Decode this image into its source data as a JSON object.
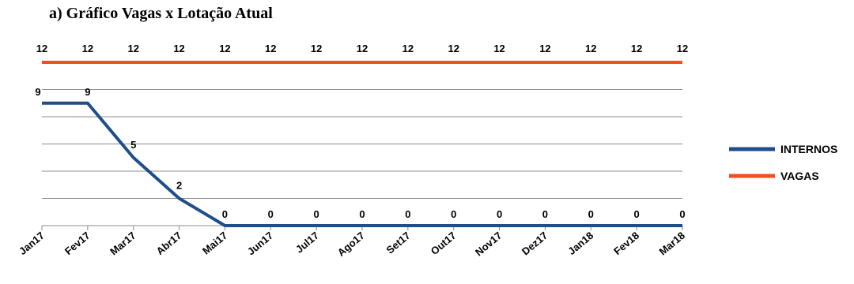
{
  "chart_data": {
    "type": "line",
    "title": "a) Gráfico Vagas x Lotação Atual",
    "categories": [
      "Jan17",
      "Fev17",
      "Mar17",
      "Abr17",
      "Mai17",
      "Jun17",
      "Jul17",
      "Ago17",
      "Set17",
      "Out17",
      "Nov17",
      "Dez17",
      "Jan18",
      "Fev18",
      "Mar18"
    ],
    "series": [
      {
        "name": "INTERNOS",
        "color": "#1f4e8c",
        "values": [
          9,
          9,
          5,
          2,
          0,
          0,
          0,
          0,
          0,
          0,
          0,
          0,
          0,
          0,
          0
        ]
      },
      {
        "name": "VAGAS",
        "color": "#f04e23",
        "values": [
          12,
          12,
          12,
          12,
          12,
          12,
          12,
          12,
          12,
          12,
          12,
          12,
          12,
          12,
          12
        ]
      }
    ],
    "ylim": [
      0,
      12
    ],
    "grid": true,
    "legend": "right"
  }
}
